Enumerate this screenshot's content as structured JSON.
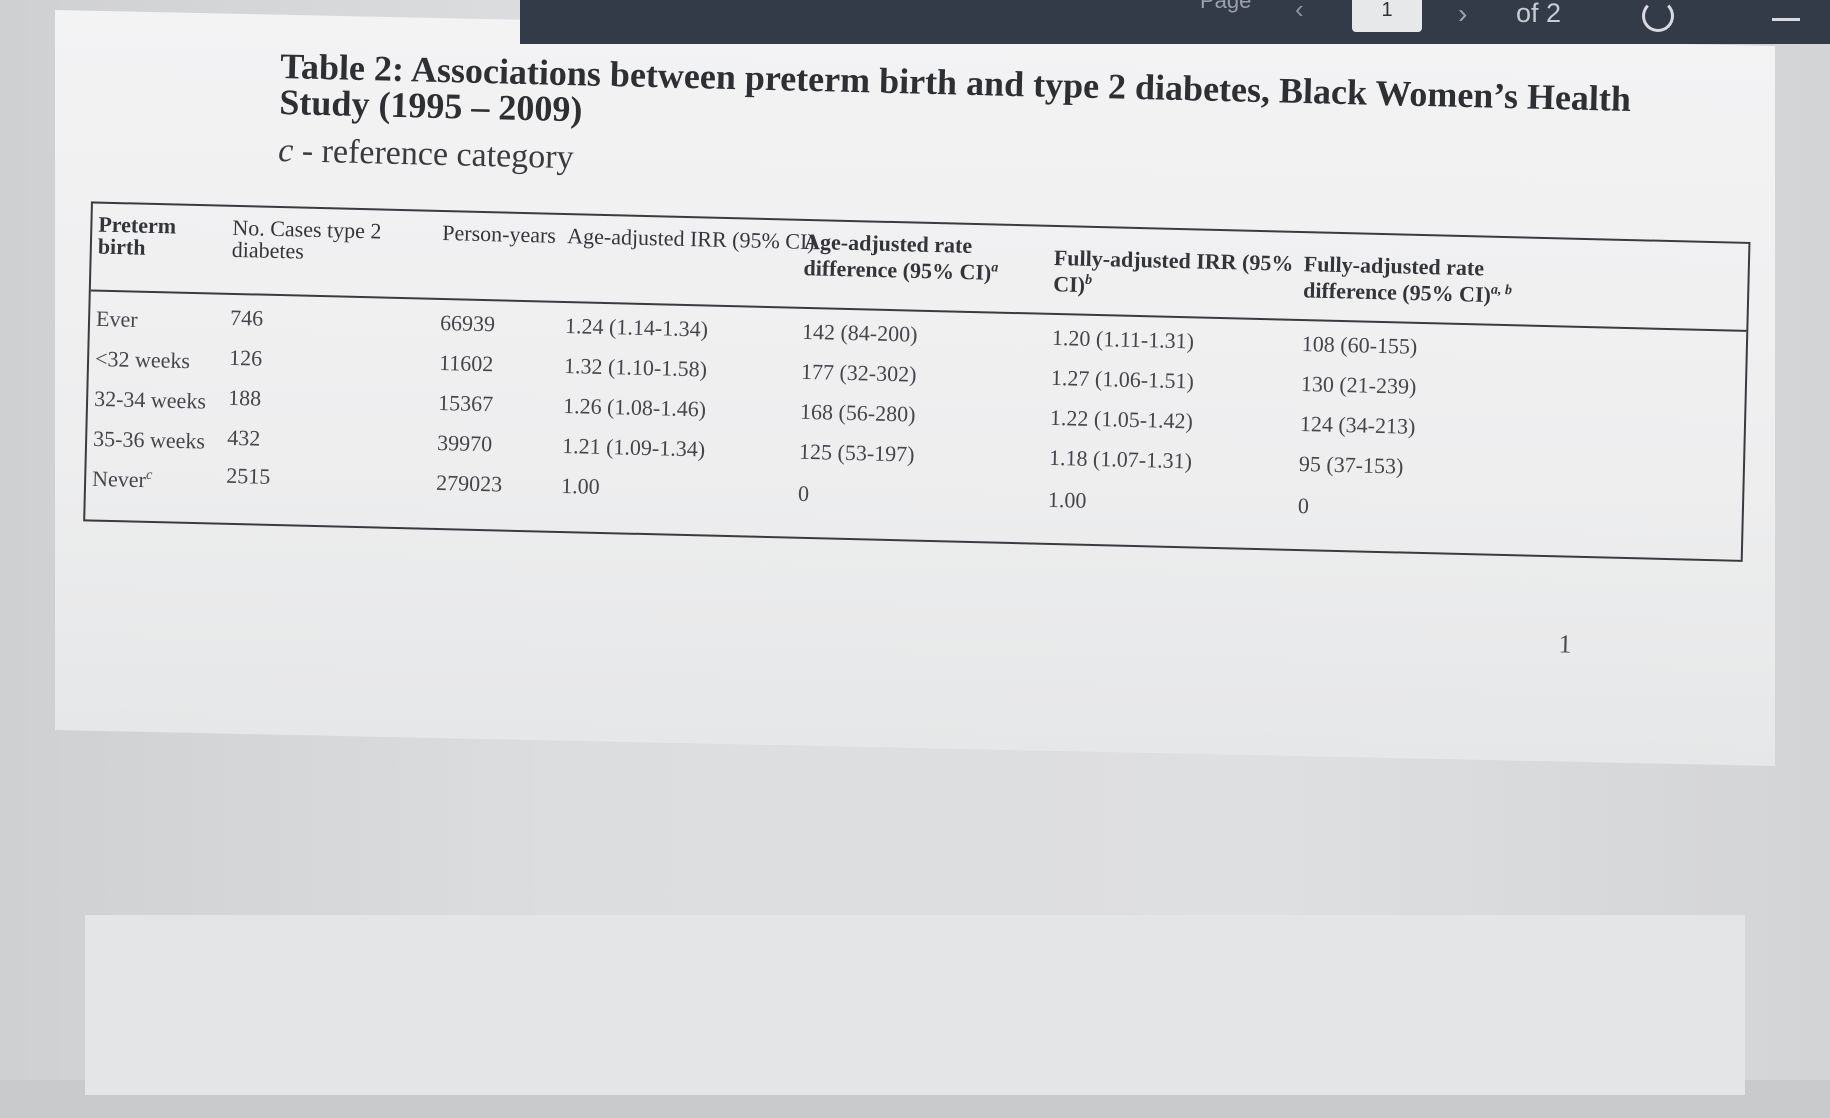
{
  "viewer": {
    "page_label": "Page",
    "current_page": "1",
    "page_count": "of 2",
    "prev_icon": "chevron-left-icon",
    "next_icon": "chevron-right-icon",
    "rotate_icon": "rotate-icon",
    "zoom_out_icon": "minus-icon"
  },
  "document": {
    "title": "Table 2: Associations between preterm birth and type 2 diabetes, Black Women’s Health Study (1995 – 2009)",
    "footnote_marker": "c",
    "footnote_text": " - reference category",
    "page_number": "1"
  },
  "table": {
    "headers": [
      {
        "text": "Preterm birth",
        "sup": ""
      },
      {
        "text": "No. Cases type 2 diabetes",
        "sup": ""
      },
      {
        "text": "Person-years",
        "sup": ""
      },
      {
        "text": "Age-adjusted IRR (95% CI)",
        "sup": ""
      },
      {
        "text": "Age-adjusted rate difference (95% CI)",
        "sup": "a"
      },
      {
        "text": "Fully-adjusted IRR (95% CI)",
        "sup": "b"
      },
      {
        "text": "Fully-adjusted rate difference (95% CI)",
        "sup": "a, b"
      }
    ],
    "rows": [
      {
        "label": "Ever",
        "label_sup": "",
        "cases": "746",
        "person_years": "66939",
        "age_irr": "1.24 (1.14-1.34)",
        "age_rd": "142 (84-200)",
        "full_irr": "1.20 (1.11-1.31)",
        "full_rd": "108 (60-155)"
      },
      {
        "label": "<32 weeks",
        "label_sup": "",
        "cases": "126",
        "person_years": "11602",
        "age_irr": "1.32 (1.10-1.58)",
        "age_rd": "177 (32-302)",
        "full_irr": "1.27 (1.06-1.51)",
        "full_rd": "130 (21-239)"
      },
      {
        "label": "32-34 weeks",
        "label_sup": "",
        "cases": "188",
        "person_years": "15367",
        "age_irr": "1.26 (1.08-1.46)",
        "age_rd": "168 (56-280)",
        "full_irr": "1.22 (1.05-1.42)",
        "full_rd": "124 (34-213)"
      },
      {
        "label": "35-36 weeks",
        "label_sup": "",
        "cases": "432",
        "person_years": "39970",
        "age_irr": "1.21 (1.09-1.34)",
        "age_rd": "125 (53-197)",
        "full_irr": "1.18 (1.07-1.31)",
        "full_rd": "95 (37-153)"
      },
      {
        "label": "Never",
        "label_sup": "c",
        "cases": "2515",
        "person_years": "279023",
        "age_irr": "1.00",
        "age_rd": "0",
        "full_irr": "1.00",
        "full_rd": "0"
      }
    ]
  }
}
